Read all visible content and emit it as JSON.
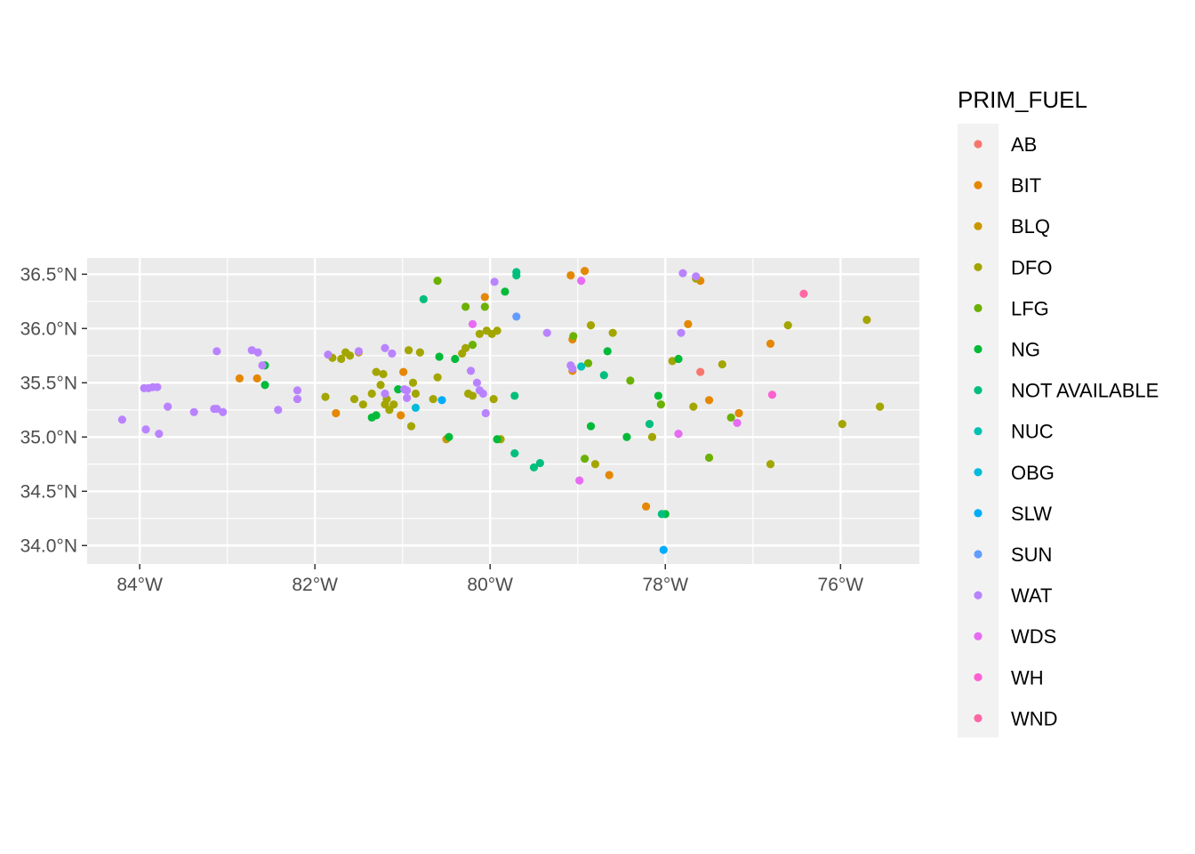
{
  "chart_data": {
    "type": "scatter",
    "xlim": [
      -84.6,
      -75.1
    ],
    "ylim": [
      33.83,
      36.65
    ],
    "x_ticks": [
      -84,
      -82,
      -80,
      -78,
      -76
    ],
    "x_tick_labels": [
      "84°W",
      "82°W",
      "80°W",
      "78°W",
      "76°W"
    ],
    "y_ticks": [
      34.0,
      34.5,
      35.0,
      35.5,
      36.0,
      36.5
    ],
    "y_tick_labels": [
      "34.0°N",
      "34.5°N",
      "35.0°N",
      "35.5°N",
      "36.0°N",
      "36.5°N"
    ],
    "grid": true,
    "legend": {
      "title": "PRIM_FUEL",
      "placement": "right"
    },
    "series": [
      {
        "name": "AB",
        "color": "#F8766D",
        "points": [
          [
            -77.6,
            35.6
          ]
        ]
      },
      {
        "name": "BIT",
        "color": "#E58700",
        "points": [
          [
            -82.86,
            35.54
          ],
          [
            -82.66,
            35.54
          ],
          [
            -81.76,
            35.22
          ],
          [
            -80.99,
            35.6
          ],
          [
            -81.02,
            35.2
          ],
          [
            -80.06,
            36.29
          ],
          [
            -79.08,
            36.49
          ],
          [
            -78.92,
            36.53
          ],
          [
            -79.06,
            35.9
          ],
          [
            -79.06,
            35.61
          ],
          [
            -78.64,
            34.65
          ],
          [
            -78.22,
            34.36
          ],
          [
            -77.74,
            36.04
          ],
          [
            -77.6,
            36.44
          ],
          [
            -77.5,
            35.34
          ],
          [
            -77.16,
            35.22
          ],
          [
            -76.8,
            35.86
          ]
        ]
      },
      {
        "name": "BLQ",
        "color": "#C99800",
        "points": [
          [
            -81.5,
            35.78
          ],
          [
            -80.5,
            34.98
          ]
        ]
      },
      {
        "name": "DFO",
        "color": "#A3A500",
        "points": [
          [
            -81.88,
            35.37
          ],
          [
            -81.8,
            35.73
          ],
          [
            -81.7,
            35.72
          ],
          [
            -81.65,
            35.78
          ],
          [
            -81.6,
            35.75
          ],
          [
            -81.55,
            35.35
          ],
          [
            -81.45,
            35.3
          ],
          [
            -81.35,
            35.4
          ],
          [
            -81.3,
            35.6
          ],
          [
            -81.25,
            35.48
          ],
          [
            -81.22,
            35.58
          ],
          [
            -81.2,
            35.3
          ],
          [
            -81.18,
            35.35
          ],
          [
            -81.15,
            35.25
          ],
          [
            -81.1,
            35.3
          ],
          [
            -80.93,
            35.8
          ],
          [
            -80.9,
            35.1
          ],
          [
            -80.88,
            35.5
          ],
          [
            -80.85,
            35.4
          ],
          [
            -80.8,
            35.78
          ],
          [
            -80.65,
            35.35
          ],
          [
            -80.6,
            35.55
          ],
          [
            -80.32,
            35.77
          ],
          [
            -80.28,
            35.82
          ],
          [
            -80.25,
            35.4
          ],
          [
            -80.2,
            35.38
          ],
          [
            -80.12,
            35.95
          ],
          [
            -80.04,
            35.98
          ],
          [
            -79.98,
            35.95
          ],
          [
            -79.92,
            35.98
          ],
          [
            -79.88,
            34.98
          ],
          [
            -79.96,
            35.35
          ],
          [
            -78.85,
            36.03
          ],
          [
            -78.8,
            34.75
          ],
          [
            -78.6,
            35.96
          ],
          [
            -78.15,
            35.0
          ],
          [
            -77.92,
            35.7
          ],
          [
            -77.68,
            35.28
          ],
          [
            -77.65,
            36.46
          ],
          [
            -77.35,
            35.67
          ],
          [
            -76.8,
            34.75
          ],
          [
            -76.6,
            36.03
          ],
          [
            -75.98,
            35.12
          ],
          [
            -75.7,
            36.08
          ],
          [
            -75.55,
            35.28
          ]
        ]
      },
      {
        "name": "LFG",
        "color": "#6BB100",
        "points": [
          [
            -80.6,
            36.44
          ],
          [
            -80.28,
            36.2
          ],
          [
            -80.06,
            36.2
          ],
          [
            -80.2,
            35.85
          ],
          [
            -79.05,
            35.93
          ],
          [
            -78.88,
            35.68
          ],
          [
            -78.92,
            34.8
          ],
          [
            -78.4,
            35.52
          ],
          [
            -78.05,
            35.3
          ],
          [
            -77.5,
            34.81
          ],
          [
            -77.25,
            35.18
          ]
        ]
      },
      {
        "name": "NG",
        "color": "#00BA38",
        "points": [
          [
            -82.57,
            35.66
          ],
          [
            -82.57,
            35.48
          ],
          [
            -81.35,
            35.18
          ],
          [
            -81.3,
            35.2
          ],
          [
            -81.05,
            35.44
          ],
          [
            -80.58,
            35.74
          ],
          [
            -80.47,
            35.0
          ],
          [
            -80.4,
            35.72
          ],
          [
            -79.83,
            36.34
          ],
          [
            -79.92,
            34.98
          ],
          [
            -78.85,
            35.1
          ],
          [
            -78.66,
            35.79
          ],
          [
            -78.44,
            35.0
          ],
          [
            -78.08,
            35.38
          ],
          [
            -78.0,
            34.29
          ],
          [
            -77.85,
            35.72
          ]
        ]
      },
      {
        "name": "NOT AVAILABLE",
        "color": "#00BF7D",
        "points": [
          [
            -80.76,
            36.27
          ],
          [
            -79.7,
            36.52
          ],
          [
            -79.7,
            36.49
          ],
          [
            -79.72,
            35.38
          ],
          [
            -79.72,
            34.85
          ],
          [
            -79.5,
            34.72
          ],
          [
            -79.43,
            34.76
          ],
          [
            -78.7,
            35.57
          ],
          [
            -78.18,
            35.12
          ],
          [
            -78.04,
            34.29
          ]
        ]
      },
      {
        "name": "NUC",
        "color": "#00C1B3",
        "points": [
          [
            -78.96,
            35.65
          ]
        ]
      },
      {
        "name": "OBG",
        "color": "#00BBDA",
        "points": [
          [
            -80.85,
            35.27
          ]
        ]
      },
      {
        "name": "SLW",
        "color": "#00ACFC",
        "points": [
          [
            -80.55,
            35.34
          ],
          [
            -78.02,
            33.96
          ]
        ]
      },
      {
        "name": "SUN",
        "color": "#619CFF",
        "points": [
          [
            -79.7,
            36.11
          ]
        ]
      },
      {
        "name": "WAT",
        "color": "#B983FF",
        "points": [
          [
            -84.2,
            35.16
          ],
          [
            -83.95,
            35.45
          ],
          [
            -83.9,
            35.45
          ],
          [
            -83.85,
            35.46
          ],
          [
            -83.8,
            35.46
          ],
          [
            -83.93,
            35.07
          ],
          [
            -83.78,
            35.03
          ],
          [
            -83.68,
            35.28
          ],
          [
            -83.38,
            35.23
          ],
          [
            -83.15,
            35.26
          ],
          [
            -83.12,
            35.26
          ],
          [
            -83.05,
            35.23
          ],
          [
            -83.12,
            35.79
          ],
          [
            -82.72,
            35.8
          ],
          [
            -82.65,
            35.78
          ],
          [
            -82.6,
            35.66
          ],
          [
            -82.42,
            35.25
          ],
          [
            -82.2,
            35.43
          ],
          [
            -82.2,
            35.35
          ],
          [
            -81.85,
            35.76
          ],
          [
            -81.5,
            35.79
          ],
          [
            -81.2,
            35.82
          ],
          [
            -81.12,
            35.77
          ],
          [
            -81.2,
            35.4
          ],
          [
            -80.98,
            35.44
          ],
          [
            -80.95,
            35.43
          ],
          [
            -80.95,
            35.36
          ],
          [
            -80.22,
            35.61
          ],
          [
            -80.15,
            35.5
          ],
          [
            -80.12,
            35.43
          ],
          [
            -80.08,
            35.4
          ],
          [
            -80.05,
            35.22
          ],
          [
            -79.95,
            36.43
          ],
          [
            -79.35,
            35.96
          ],
          [
            -79.08,
            35.66
          ],
          [
            -79.06,
            35.63
          ],
          [
            -77.8,
            36.51
          ],
          [
            -77.65,
            36.48
          ],
          [
            -77.82,
            35.96
          ]
        ]
      },
      {
        "name": "WDS",
        "color": "#E76BF3",
        "points": [
          [
            -80.2,
            36.04
          ],
          [
            -78.96,
            36.44
          ],
          [
            -78.98,
            34.6
          ],
          [
            -77.85,
            35.03
          ],
          [
            -77.18,
            35.13
          ]
        ]
      },
      {
        "name": "WH",
        "color": "#FD61D1",
        "points": [
          [
            -76.78,
            35.39
          ]
        ]
      },
      {
        "name": "WND",
        "color": "#FF67A4",
        "points": [
          [
            -76.42,
            36.32
          ]
        ]
      }
    ]
  }
}
